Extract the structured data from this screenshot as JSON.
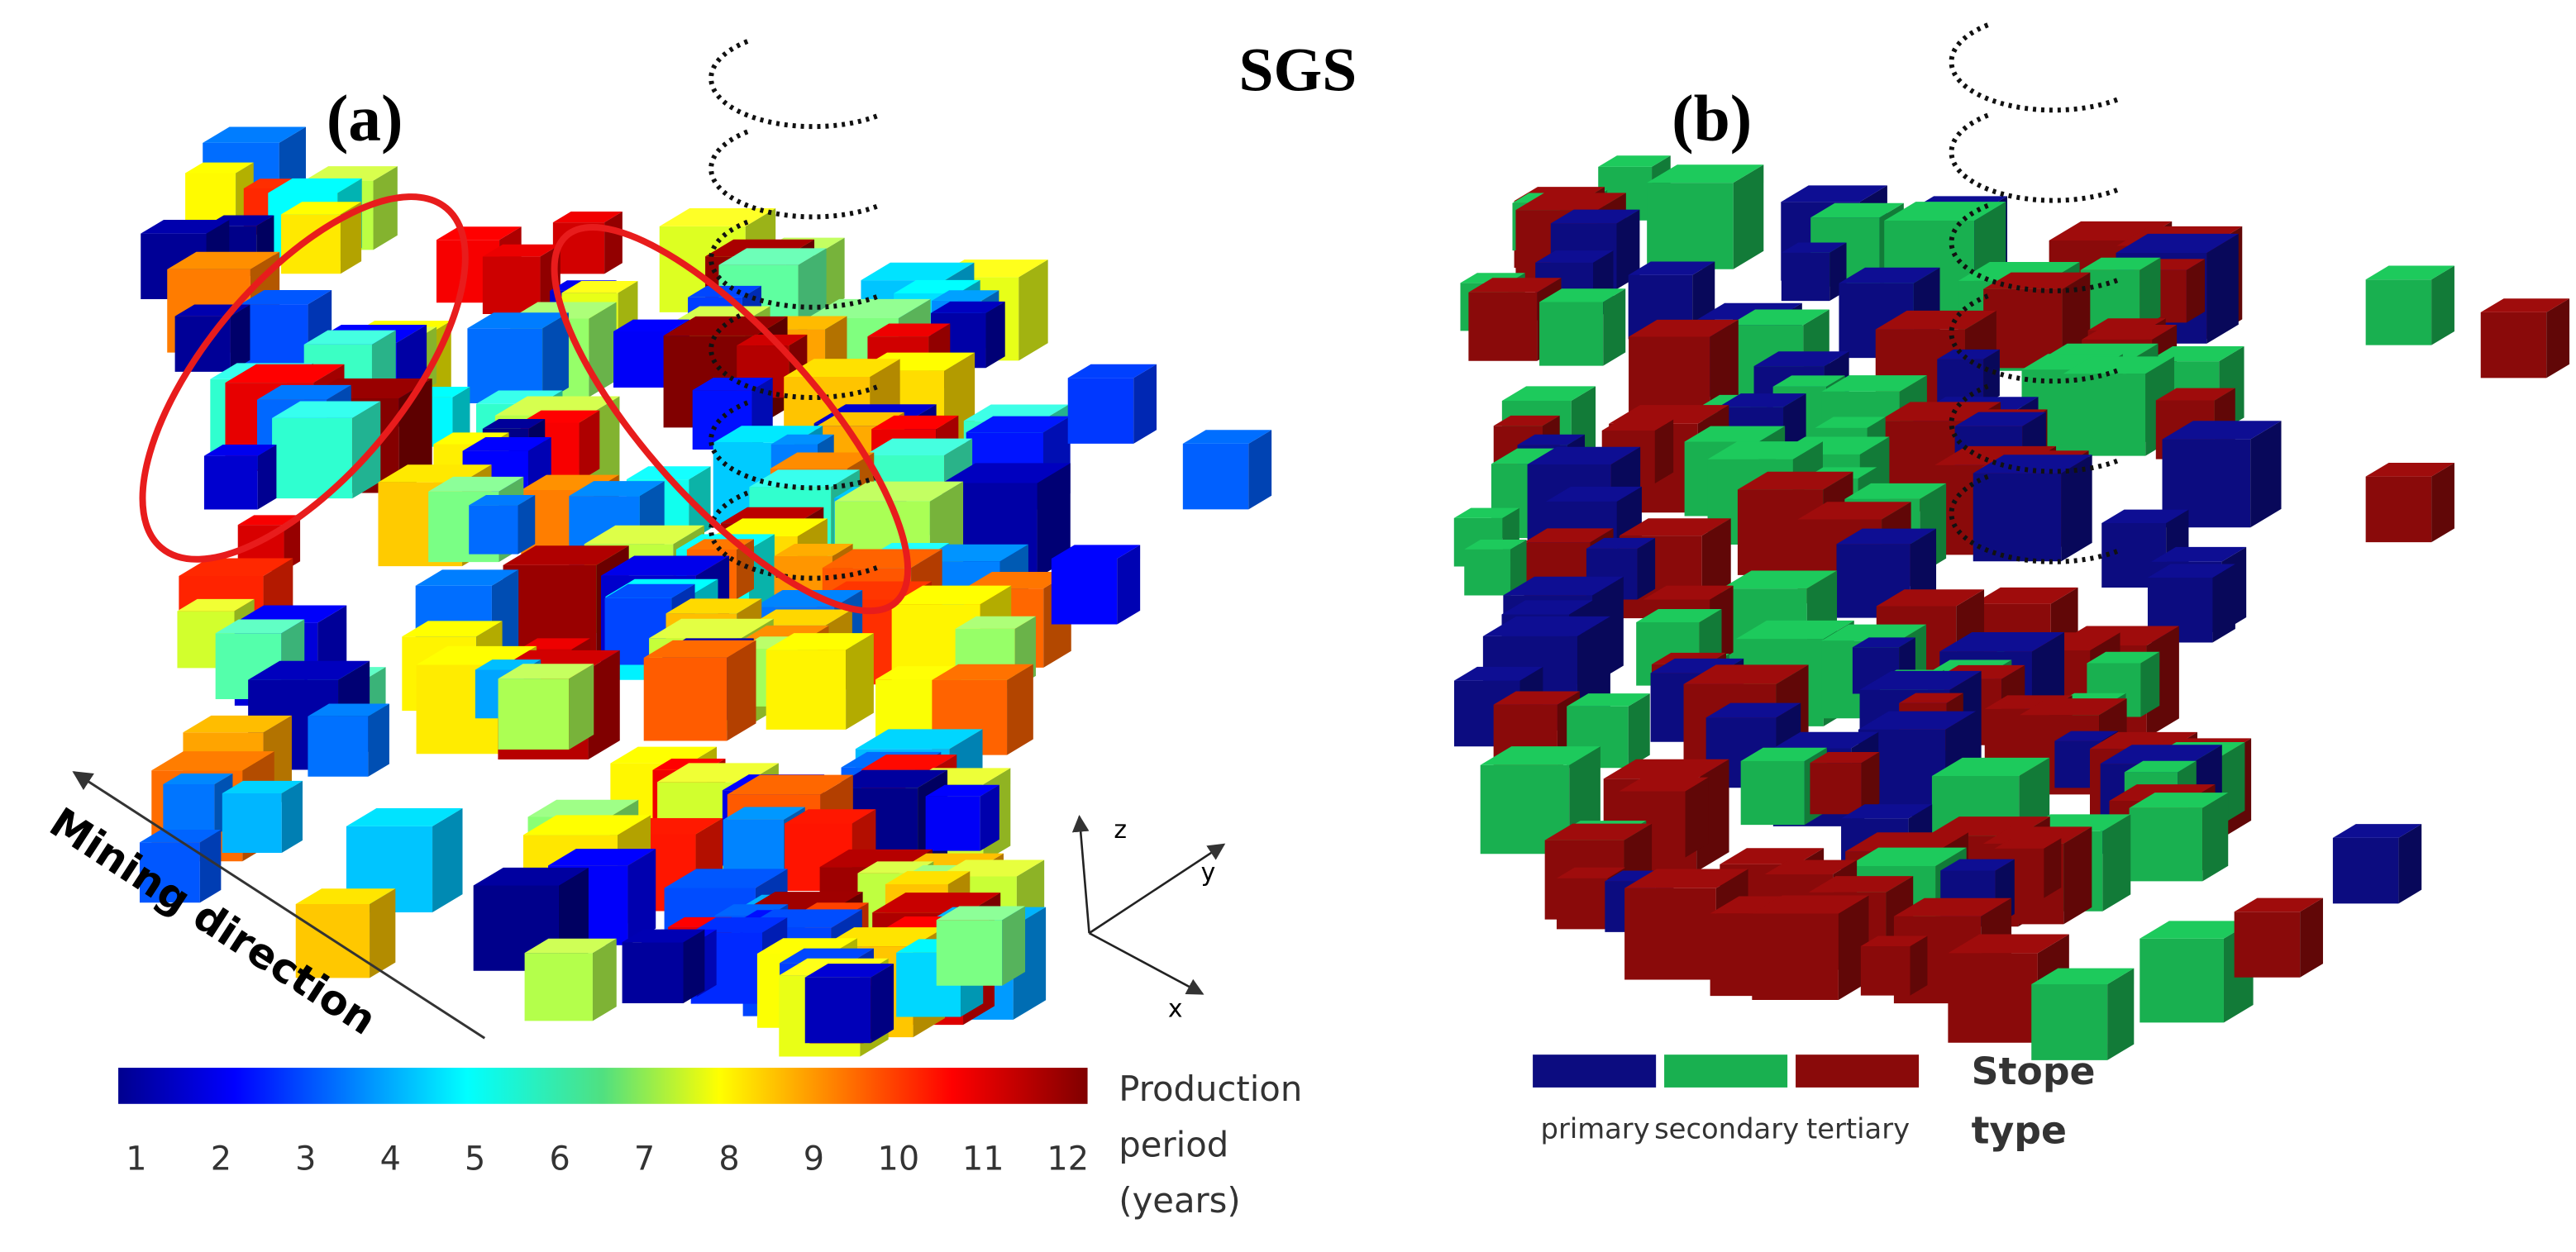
{
  "title": "SGS",
  "panels": [
    {
      "label": "(a)"
    },
    {
      "label": "(b)"
    }
  ],
  "annotation": "Mining direction",
  "axes": {
    "x": "x",
    "y": "y",
    "z": "z"
  },
  "colorbar": {
    "ticks": [
      1,
      2,
      3,
      4,
      5,
      6,
      7,
      8,
      9,
      10,
      11,
      12
    ],
    "label": [
      "Production",
      "period",
      "(years)"
    ]
  },
  "legend": {
    "items": [
      "primary",
      "secondary",
      "tertiary"
    ],
    "colors": [
      "#0c0c80",
      "#19b050",
      "#8a0a0a"
    ],
    "label": [
      "Stope",
      "type"
    ]
  }
}
